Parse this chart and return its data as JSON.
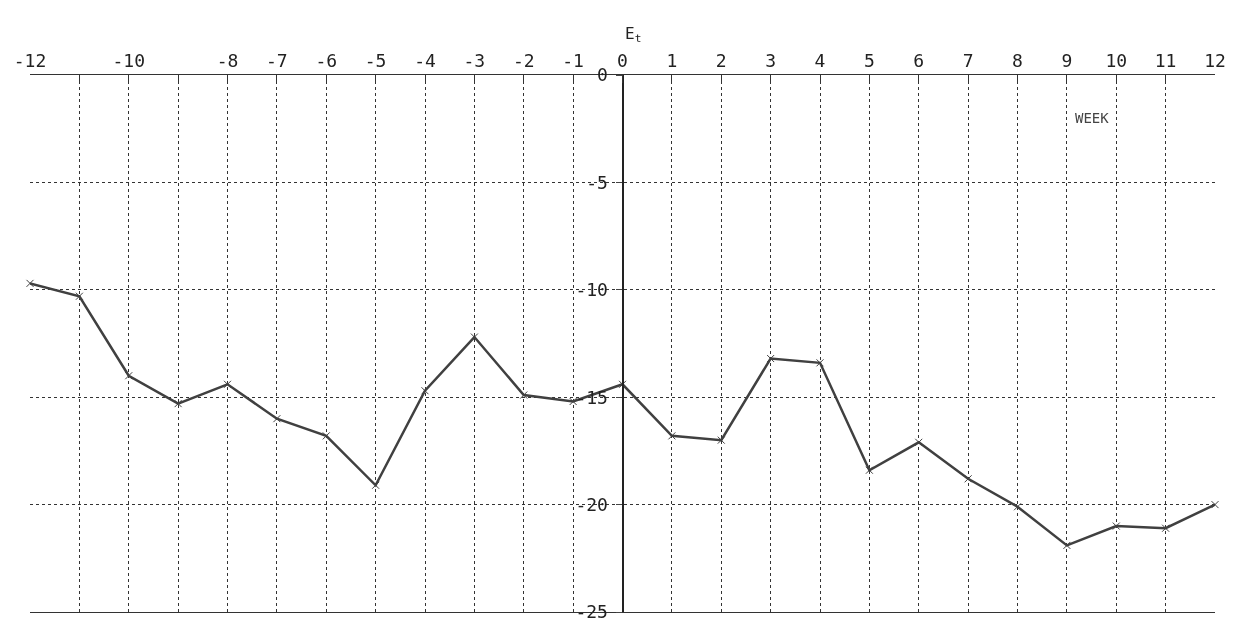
{
  "chart_data": {
    "type": "line",
    "ylabel": "E$_{t}$",
    "xlabel": "WEEK",
    "x": [
      -12,
      -11,
      -10,
      -9,
      -8,
      -7,
      -6,
      -5,
      -4,
      -3,
      -2,
      -1,
      0,
      1,
      2,
      3,
      4,
      5,
      6,
      7,
      8,
      9,
      10,
      11,
      12
    ],
    "series": [
      {
        "color": "#404040",
        "values": [
          -9.7,
          -10.3,
          -14.0,
          -15.3,
          -14.4,
          -16.0,
          -16.8,
          -19.1,
          -14.7,
          -12.2,
          -14.9,
          -15.2,
          -14.4,
          -16.8,
          -17.0,
          -13.2,
          -13.4,
          -18.4,
          -17.1,
          -18.8,
          -20.1,
          -21.9,
          -21.0,
          -21.1,
          -20.0
        ]
      }
    ],
    "xlim": [
      -12,
      12
    ],
    "xticks": [
      -12,
      {
        "value": -11,
        "label": null
      },
      -10,
      {
        "value": -9,
        "label": null
      },
      -8,
      -7,
      -6,
      -5,
      -4,
      -3,
      -2,
      -1,
      0,
      1,
      2,
      3,
      4,
      5,
      6,
      7,
      8,
      9,
      10,
      11,
      12
    ],
    "ylim": [
      -25,
      0
    ],
    "yticks": [
      -25,
      -20,
      -15,
      -10,
      -5,
      0
    ],
    "grid": true,
    "marker": "cross",
    "line_style": "solid"
  }
}
